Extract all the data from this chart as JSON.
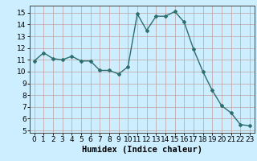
{
  "x": [
    0,
    1,
    2,
    3,
    4,
    5,
    6,
    7,
    8,
    9,
    10,
    11,
    12,
    13,
    14,
    15,
    16,
    17,
    18,
    19,
    20,
    21,
    22,
    23
  ],
  "y": [
    10.9,
    11.6,
    11.1,
    11.0,
    11.3,
    10.9,
    10.9,
    10.1,
    10.1,
    9.8,
    10.4,
    14.9,
    13.5,
    14.7,
    14.7,
    15.1,
    14.2,
    11.9,
    10.0,
    8.4,
    7.1,
    6.5,
    5.5,
    5.4
  ],
  "line_color": "#2d6e6e",
  "marker": "D",
  "marker_size": 2,
  "bg_color": "#cceeff",
  "grid_color": "#c0a0a0",
  "xlabel": "Humidex (Indice chaleur)",
  "xlim": [
    -0.5,
    23.5
  ],
  "ylim": [
    4.8,
    15.6
  ],
  "yticks": [
    5,
    6,
    7,
    8,
    9,
    10,
    11,
    12,
    13,
    14,
    15
  ],
  "xticks": [
    0,
    1,
    2,
    3,
    4,
    5,
    6,
    7,
    8,
    9,
    10,
    11,
    12,
    13,
    14,
    15,
    16,
    17,
    18,
    19,
    20,
    21,
    22,
    23
  ],
  "tick_font_size": 6.5,
  "label_font_size": 7.5
}
